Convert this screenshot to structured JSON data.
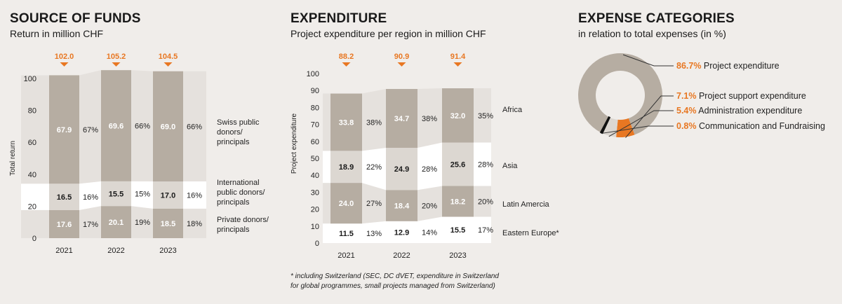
{
  "colors": {
    "background": "#f0edea",
    "accent": "#e87722",
    "taupe": "#b6ada2",
    "light": "#dcd7d1",
    "dark": "#a79c91",
    "white": "#ffffff"
  },
  "funds": {
    "title": "SOURCE OF FUNDS",
    "subtitle": "Return in million CHF"
  },
  "expenditure": {
    "title": "EXPENDITURE",
    "subtitle": "Project expenditure per region in million CHF",
    "footnote_line1": "* including Switzerland (SEC, DC dVET, expenditure in Switzerland",
    "footnote_line2": "for global programmes, small projects managed from Switzerland)"
  },
  "categories": {
    "title": "EXPENSE CATEGORIES",
    "subtitle": "in relation to total expenses (in %)"
  },
  "chart_data": [
    {
      "type": "bar",
      "stacked": true,
      "title": "SOURCE OF FUNDS",
      "subtitle": "Return in million CHF",
      "ylabel": "Total return",
      "ylim": [
        0,
        100
      ],
      "yticks": [
        "0",
        "20",
        "40",
        "60",
        "80",
        "100"
      ],
      "categories": [
        "2021",
        "2022",
        "2023"
      ],
      "totals": [
        "102.0",
        "105.2",
        "104.5"
      ],
      "series": [
        {
          "name": "Private donors/ principals",
          "label_lines": [
            "Private donors/",
            "principals"
          ],
          "values": [
            17.6,
            20.1,
            18.5
          ],
          "value_labels": [
            "17.6",
            "20.1",
            "18.5"
          ],
          "percents": [
            "17%",
            "19%",
            "18%"
          ]
        },
        {
          "name": "International public donors/ principals",
          "label_lines": [
            "International",
            "public donors/",
            "principals"
          ],
          "values": [
            16.5,
            15.5,
            17.0
          ],
          "value_labels": [
            "16.5",
            "15.5",
            "17.0"
          ],
          "percents": [
            "16%",
            "15%",
            "16%"
          ]
        },
        {
          "name": "Swiss public donors/ principals",
          "label_lines": [
            "Swiss public",
            "donors/",
            "principals"
          ],
          "values": [
            67.9,
            69.6,
            69.0
          ],
          "value_labels": [
            "67.9",
            "69.6",
            "69.0"
          ],
          "percents": [
            "67%",
            "66%",
            "66%"
          ]
        }
      ]
    },
    {
      "type": "bar",
      "stacked": true,
      "title": "EXPENDITURE",
      "subtitle": "Project expenditure per region in million CHF",
      "ylabel": "Project expenditure",
      "ylim": [
        0,
        100
      ],
      "yticks": [
        "0",
        "10",
        "20",
        "30",
        "40",
        "50",
        "60",
        "70",
        "80",
        "90",
        "100"
      ],
      "categories": [
        "2021",
        "2022",
        "2023"
      ],
      "totals": [
        "88.2",
        "90.9",
        "91.4"
      ],
      "series": [
        {
          "name": "Eastern Europe*",
          "values": [
            11.5,
            12.9,
            15.5
          ],
          "value_labels": [
            "11.5",
            "12.9",
            "15.5"
          ],
          "percents": [
            "13%",
            "14%",
            "17%"
          ]
        },
        {
          "name": "Latin Amercia",
          "values": [
            24.0,
            18.4,
            18.2
          ],
          "value_labels": [
            "24.0",
            "18.4",
            "18.2"
          ],
          "percents": [
            "27%",
            "20%",
            "20%"
          ]
        },
        {
          "name": "Asia",
          "values": [
            18.9,
            24.9,
            25.6
          ],
          "value_labels": [
            "18.9",
            "24.9",
            "25.6"
          ],
          "percents": [
            "22%",
            "28%",
            "28%"
          ]
        },
        {
          "name": "Africa",
          "values": [
            33.8,
            34.7,
            32.0
          ],
          "value_labels": [
            "33.8",
            "34.7",
            "32.0"
          ],
          "percents": [
            "38%",
            "38%",
            "35%"
          ]
        }
      ]
    },
    {
      "type": "pie",
      "donut": true,
      "title": "EXPENSE CATEGORIES",
      "subtitle": "in relation to total expenses (in %)",
      "slices": [
        {
          "name": "Project expenditure",
          "value": 86.7,
          "pct_label": "86.7%"
        },
        {
          "name": "Project support expenditure",
          "value": 7.1,
          "pct_label": "7.1%"
        },
        {
          "name": "Administration expenditure",
          "value": 5.4,
          "pct_label": "5.4%"
        },
        {
          "name": "Communication and Fundraising",
          "value": 0.8,
          "pct_label": "0.8%"
        }
      ]
    }
  ]
}
